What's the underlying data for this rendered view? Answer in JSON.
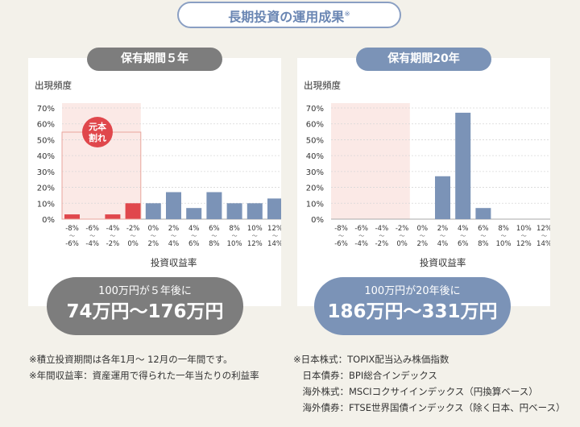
{
  "header": {
    "title": "長期投資の運用成果",
    "title_mark": "※"
  },
  "chart_data": [
    {
      "type": "bar",
      "period_label": "保有期間５年",
      "ylabel": "出現頻度",
      "xlabel": "投資収益率",
      "ylim": [
        0,
        70
      ],
      "yticks": [
        "70%",
        "60%",
        "50%",
        "40%",
        "30%",
        "20%",
        "10%",
        "0%"
      ],
      "categories": [
        [
          "-8%",
          "〜",
          "-6%"
        ],
        [
          "-6%",
          "〜",
          "-4%"
        ],
        [
          "-4%",
          "〜",
          "-2%"
        ],
        [
          "-2%",
          "〜",
          "0%"
        ],
        [
          "0%",
          "〜",
          "2%"
        ],
        [
          "2%",
          "〜",
          "4%"
        ],
        [
          "4%",
          "〜",
          "6%"
        ],
        [
          "6%",
          "〜",
          "8%"
        ],
        [
          "8%",
          "〜",
          "10%"
        ],
        [
          "10%",
          "〜",
          "12%"
        ],
        [
          "12%",
          "〜",
          "14%"
        ]
      ],
      "values": [
        3,
        0,
        3,
        10,
        10,
        17,
        7,
        17,
        10,
        10,
        13
      ],
      "negative_color": "#e0474c",
      "positive_color": "#7b93b7",
      "loss_region_label": [
        "元本",
        "割れ"
      ],
      "summary_line1": "100万円が５年後に",
      "summary_line2": "74万円〜176万円"
    },
    {
      "type": "bar",
      "period_label": "保有期間20年",
      "ylabel": "出現頻度",
      "xlabel": "投資収益率",
      "ylim": [
        0,
        70
      ],
      "yticks": [
        "70%",
        "60%",
        "50%",
        "40%",
        "30%",
        "20%",
        "10%",
        "0%"
      ],
      "categories": [
        [
          "-8%",
          "〜",
          "-6%"
        ],
        [
          "-6%",
          "〜",
          "-4%"
        ],
        [
          "-4%",
          "〜",
          "-2%"
        ],
        [
          "-2%",
          "〜",
          "0%"
        ],
        [
          "0%",
          "〜",
          "2%"
        ],
        [
          "2%",
          "〜",
          "4%"
        ],
        [
          "4%",
          "〜",
          "6%"
        ],
        [
          "6%",
          "〜",
          "8%"
        ],
        [
          "8%",
          "〜",
          "10%"
        ],
        [
          "10%",
          "〜",
          "12%"
        ],
        [
          "12%",
          "〜",
          "14%"
        ]
      ],
      "values": [
        0,
        0,
        0,
        0,
        0,
        27,
        67,
        7,
        0,
        0,
        0
      ],
      "negative_color": "#e0474c",
      "positive_color": "#7b93b7",
      "summary_line1": "100万円が20年後に",
      "summary_line2": "186万円〜331万円"
    }
  ],
  "notes_left": [
    "※積立投資期間は各年1月〜 12月の一年間です。",
    "※年間収益率：資産運用で得られた一年当たりの利益率"
  ],
  "notes_right": [
    "※日本株式：TOPIX配当込み株価指数",
    "　日本債券：BPI総合インデックス",
    "　海外株式：MSCIコクサイインデックス（円換算ベース）",
    "　海外債券：FTSE世界国債インデックス（除く日本、円ベース）"
  ]
}
